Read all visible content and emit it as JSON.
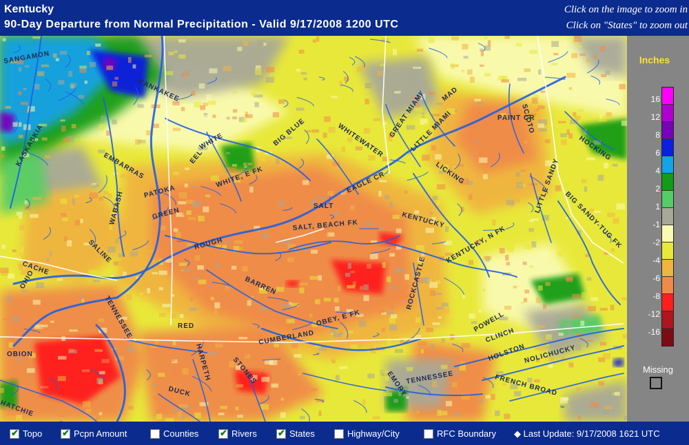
{
  "header": {
    "region": "Kentucky",
    "subtitle": "90-Day Departure from Normal Precipitation - Valid 9/17/2008 1200 UTC",
    "hint_zoom_in": "Click on the image to zoom in",
    "hint_zoom_out": "Click on \"States\" to zoom out"
  },
  "legend": {
    "title": "Inches",
    "labels": [
      "16",
      "12",
      "8",
      "6",
      "4",
      "2",
      "1",
      "-1",
      "-2",
      "-4",
      "-6",
      "-8",
      "-12",
      "-16"
    ],
    "colors": [
      "#ff00ff",
      "#b000d0",
      "#7800bc",
      "#0a1fe0",
      "#14a2e8",
      "#129c18",
      "#56cc66",
      "#a8a898",
      "#fafab2",
      "#e8e83a",
      "#f0b440",
      "#f08a48",
      "#ff1e1e",
      "#b0141e",
      "#7c0c14"
    ],
    "missing_label": "Missing"
  },
  "map": {
    "colors": {
      "yellow": "#e8e83a",
      "pale_yellow": "#fafab2",
      "orange": "#f08a48",
      "light_orange": "#f0b440",
      "red": "#ff1e1e",
      "gray": "#a8a898",
      "light_green": "#56cc66",
      "green": "#129c18",
      "light_blue": "#14a2e8",
      "blue": "#0a1fe0",
      "purple": "#7800bc",
      "river": "#1e5fe6",
      "boundary": "#ffffff"
    },
    "rivers": [
      "SANGAMON",
      "KANKAKEE",
      "KASKASKIA",
      "EMBARRAS",
      "EEL",
      "WHITE",
      "BIG BLUE",
      "WHITEWATER",
      "GREAT MIAMI",
      "MAD",
      "LITTLE MIAMI",
      "SCIOTO",
      "HOCKING",
      "PAINT CR",
      "WHITE, E FK",
      "PATOKA",
      "WABASH",
      "EAGLE CR",
      "LICKING",
      "LITTLE SANDY",
      "BIG SANDY-TUG FK",
      "SALT",
      "SALT, BEACH FK",
      "KENTUCKY",
      "KENTUCKY, N FK",
      "GREEN",
      "ROUGH",
      "SALINE",
      "CACHE",
      "OHIO",
      "TENNESSEE",
      "BARREN",
      "ROCKCASTLE",
      "RED",
      "CUMBERLAND",
      "OBEY, E FK",
      "POWELL",
      "CLINCH",
      "HOLSTON",
      "NOLICHUCKY",
      "FRENCH BROAD",
      "OBION",
      "HARPETH",
      "STONES",
      "DUCK",
      "EMORY",
      "HATCHIE"
    ]
  },
  "footer": {
    "options": [
      {
        "label": "Topo",
        "checked": true
      },
      {
        "label": "Pcpn Amount",
        "checked": true
      },
      {
        "label": "Counties",
        "checked": false
      },
      {
        "label": "Rivers",
        "checked": true
      },
      {
        "label": "States",
        "checked": true
      },
      {
        "label": "Highway/City",
        "checked": false
      },
      {
        "label": "RFC Boundary",
        "checked": false
      }
    ],
    "last_update": "◆ Last Update: 9/17/2008 1621 UTC"
  }
}
